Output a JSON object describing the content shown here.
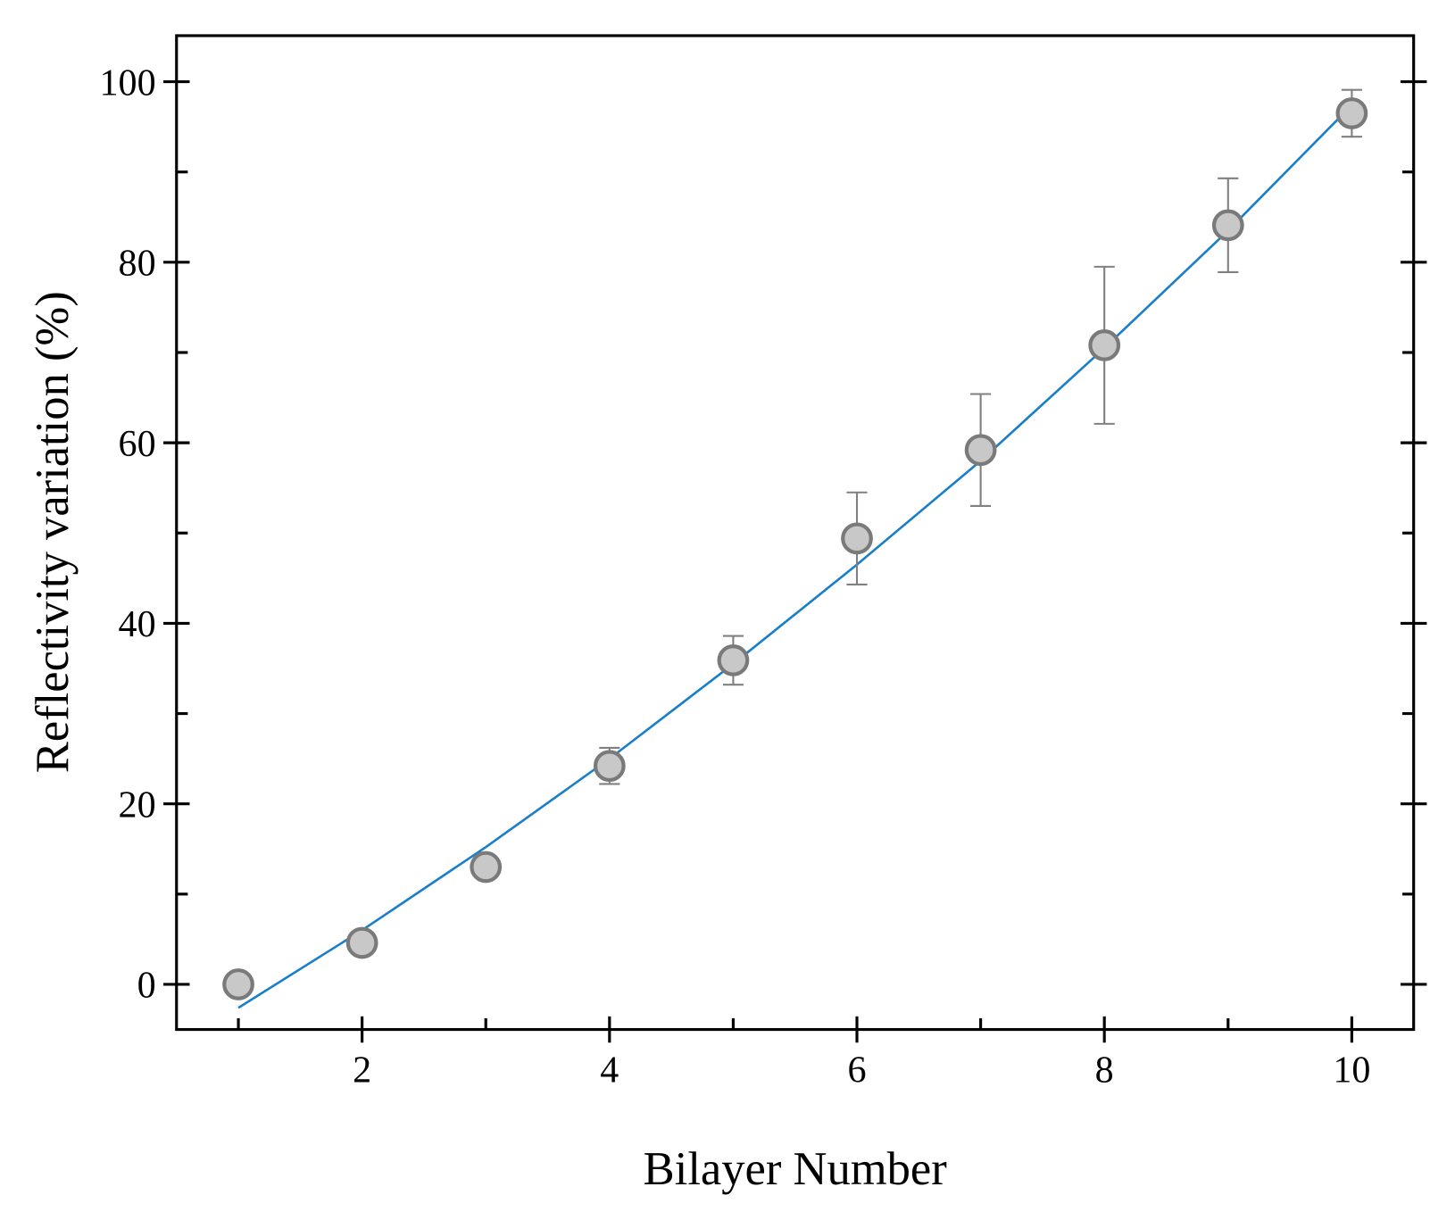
{
  "chart_data": {
    "type": "scatter",
    "x_label": "Bilayer Number",
    "y_label": "Reflectivity variation (%)",
    "x": [
      1,
      2,
      3,
      4,
      5,
      6,
      7,
      8,
      9,
      10
    ],
    "series": [
      {
        "values": [
          0,
          4.6,
          13,
          24.2,
          35.9,
          49.4,
          59.2,
          70.8,
          84.1,
          96.5
        ],
        "errors": [
          0,
          1,
          1,
          2,
          2.7,
          5.1,
          6.2,
          8.7,
          5.2,
          2.6
        ],
        "color": "#c8c8c8",
        "edge_color": "#7a7a7a",
        "error_color": "#808080"
      }
    ],
    "fit": {
      "x": [
        1,
        2,
        3,
        4,
        5,
        6,
        7,
        8,
        9,
        10
      ],
      "values": [
        -2.6,
        6,
        15.2,
        25,
        35.5,
        46.5,
        58,
        70.5,
        83.5,
        97.4
      ],
      "color": "#1a7fc9"
    },
    "xlim": [
      0.5,
      10.5
    ],
    "ylim": [
      -5,
      105.1
    ],
    "xticks": [
      2,
      4,
      6,
      8,
      10
    ],
    "yticks": [
      0,
      20,
      40,
      60,
      80,
      100
    ],
    "xminor_ticks": [
      1,
      3,
      5,
      7,
      9
    ],
    "yminor_ticks": [
      10,
      30,
      50,
      70,
      90
    ]
  }
}
